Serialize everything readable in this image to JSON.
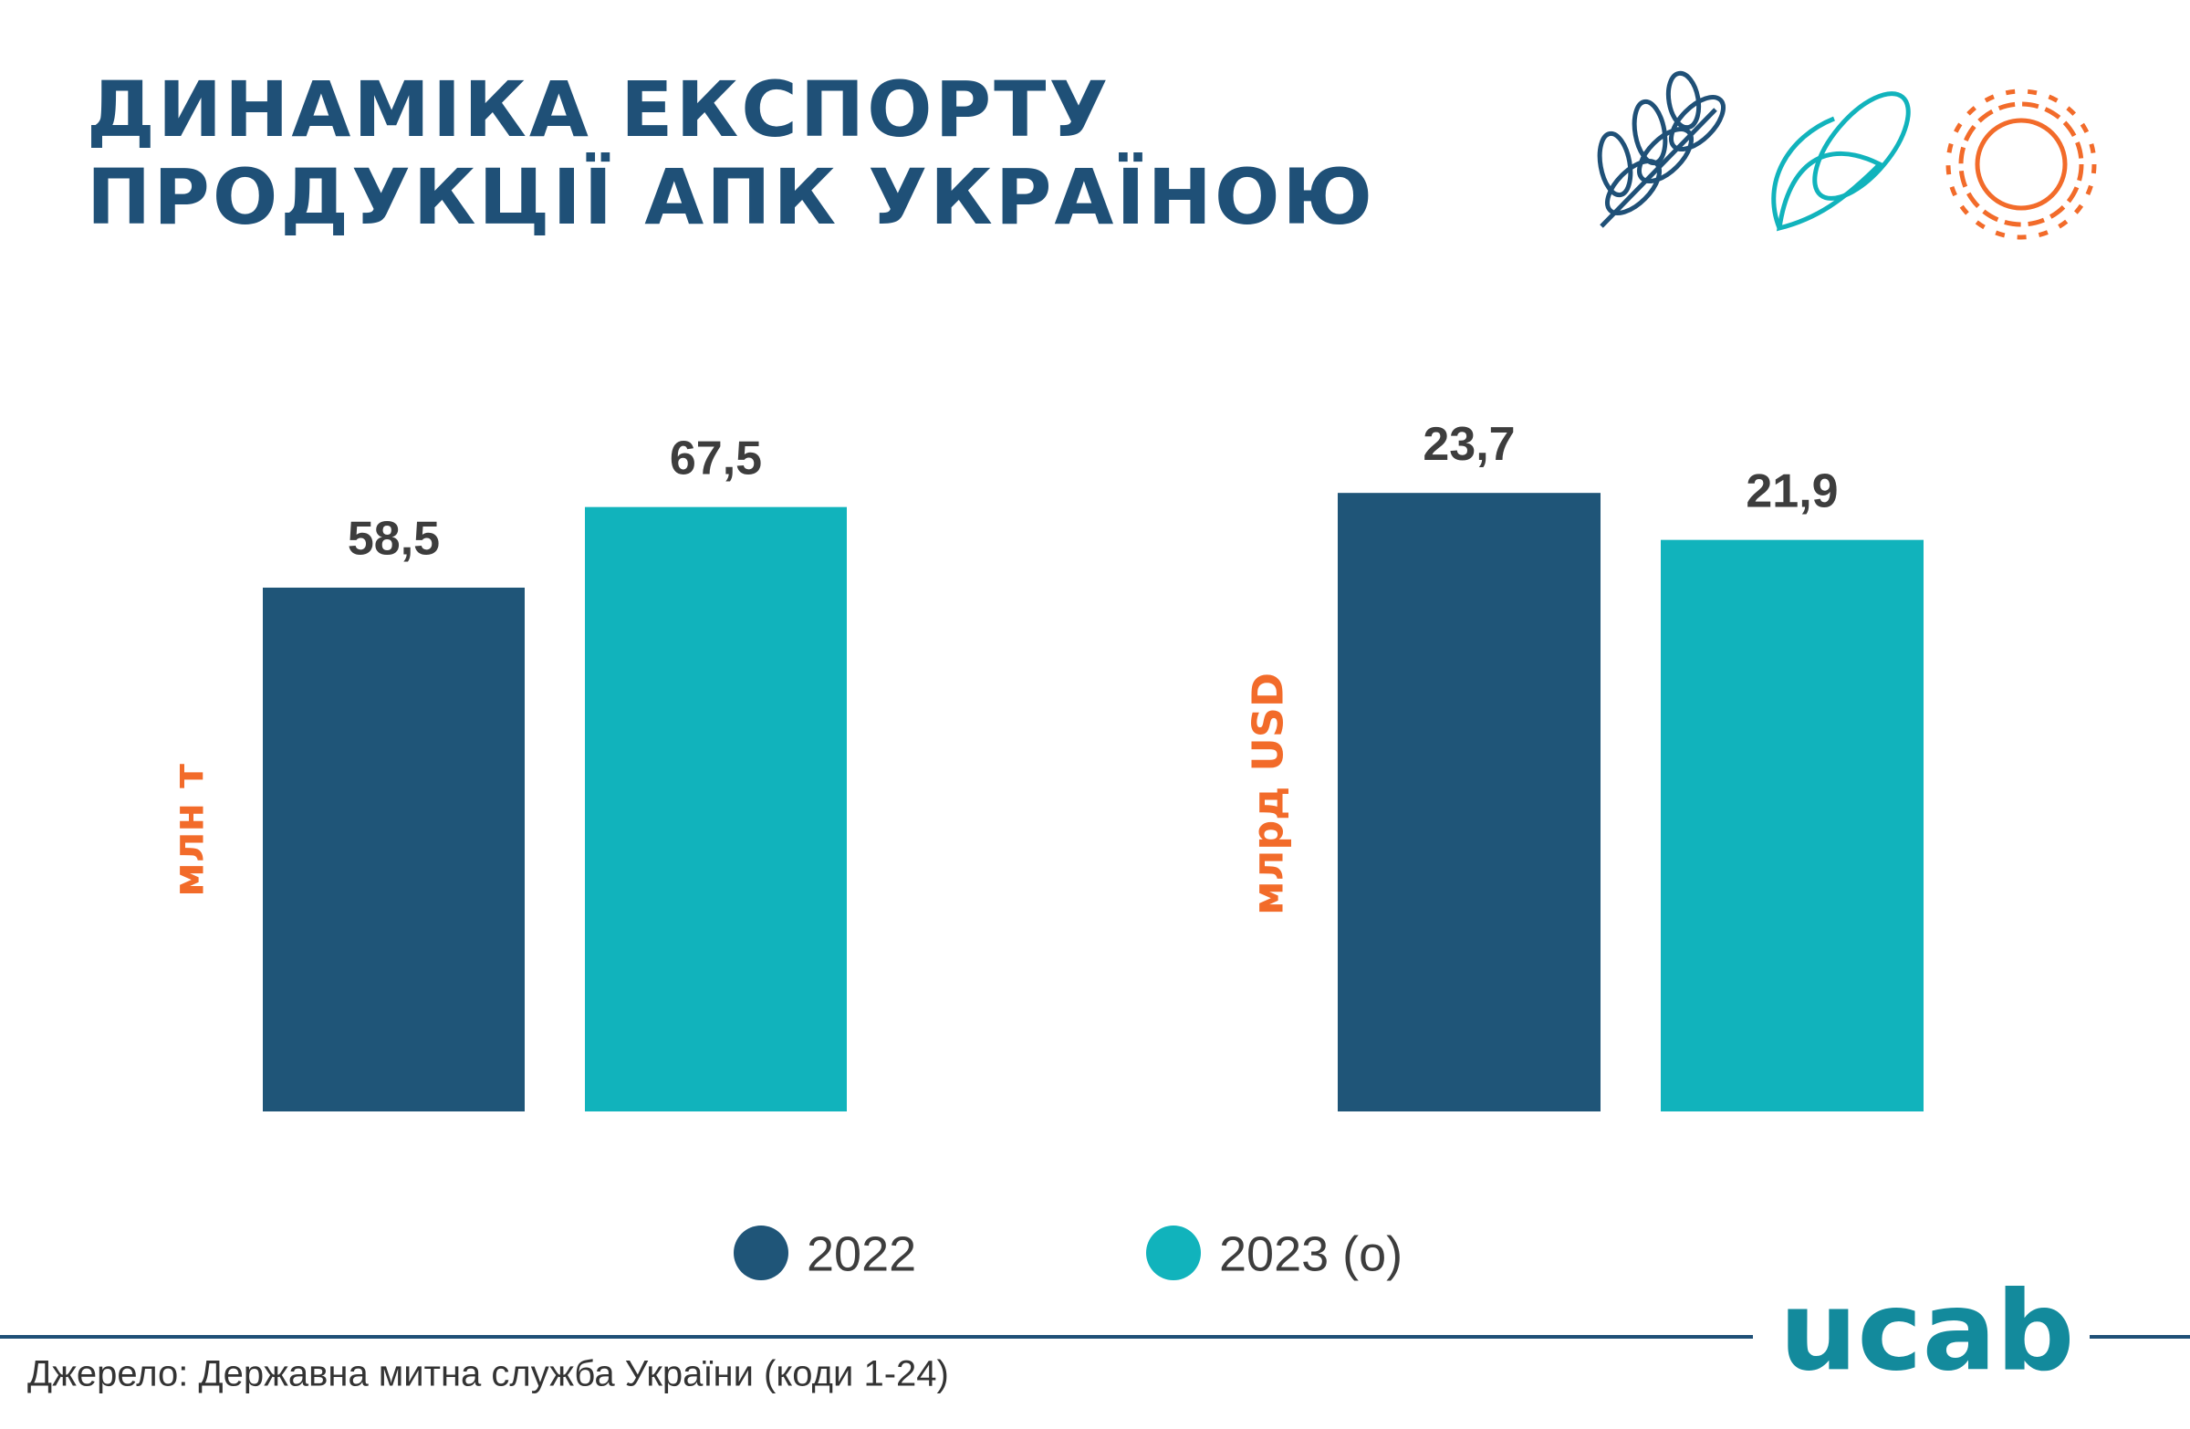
{
  "title": [
    "ДИНАМІКА ЕКСПОРТУ",
    "ПРОДУКЦІЇ АПК УКРАЇНОЮ"
  ],
  "source": "Джерело: Державна митна служба України (коди 1-24)",
  "logo": "ucab",
  "chart_data": [
    {
      "type": "bar",
      "ylabel": "млн т",
      "ylim": [
        0,
        80
      ],
      "series": [
        {
          "name": "2022",
          "color": "#1f5578",
          "values": [
            58.5
          ],
          "value_labels": [
            "58,5"
          ]
        },
        {
          "name": "2023 (о)",
          "color": "#11b3bc",
          "values": [
            67.5
          ],
          "value_labels": [
            "67,5"
          ]
        }
      ]
    },
    {
      "type": "bar",
      "ylabel": "млрд USD",
      "ylim": [
        0,
        30
      ],
      "series": [
        {
          "color": "#1f5578",
          "values": [
            23.7
          ],
          "value_labels": [
            "23,7"
          ]
        },
        {
          "color": "#11b3bc",
          "values": [
            21.9
          ],
          "value_labels": [
            "21,9"
          ]
        }
      ]
    }
  ]
}
